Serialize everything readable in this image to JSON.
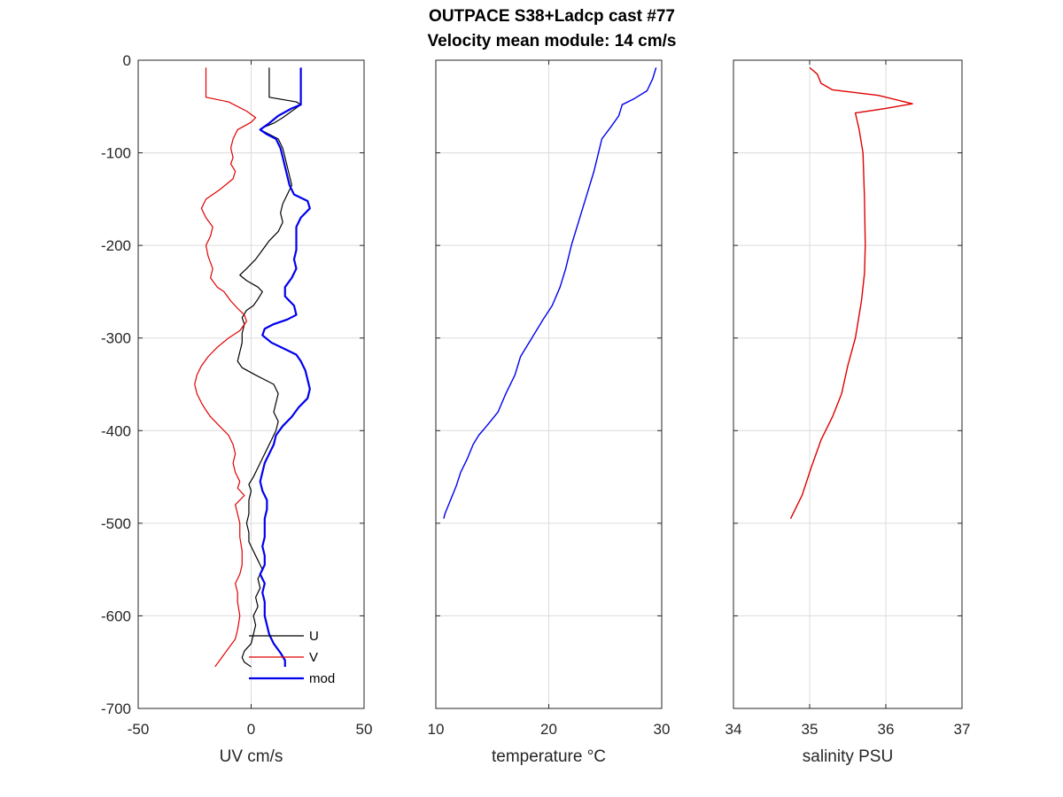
{
  "figure": {
    "title_line1": "OUTPACE S38+Ladcp cast #77",
    "title_line2": "Velocity mean module:  14 cm/s"
  },
  "chart_data": [
    {
      "type": "line",
      "xlabel": "UV cm/s",
      "xlim": [
        -50,
        50
      ],
      "xticks": [
        -50,
        0,
        50
      ],
      "ylim": [
        -700,
        0
      ],
      "yticks": [
        0,
        -100,
        -200,
        -300,
        -400,
        -500,
        -600,
        -700
      ],
      "grid": true,
      "legend_location": "bottom-center",
      "series": [
        {
          "name": "U",
          "color": "#000000",
          "points": [
            [
              8,
              -8
            ],
            [
              8,
              -40
            ],
            [
              20,
              -45
            ],
            [
              22,
              -48
            ],
            [
              18,
              -55
            ],
            [
              14,
              -62
            ],
            [
              10,
              -68
            ],
            [
              6,
              -72
            ],
            [
              4,
              -75
            ],
            [
              8,
              -80
            ],
            [
              12,
              -85
            ],
            [
              14,
              -95
            ],
            [
              15,
              -105
            ],
            [
              16,
              -115
            ],
            [
              17,
              -125
            ],
            [
              18,
              -135
            ],
            [
              16,
              -145
            ],
            [
              14,
              -155
            ],
            [
              13,
              -165
            ],
            [
              14,
              -175
            ],
            [
              12,
              -185
            ],
            [
              8,
              -195
            ],
            [
              5,
              -205
            ],
            [
              2,
              -215
            ],
            [
              -2,
              -225
            ],
            [
              -5,
              -232
            ],
            [
              -2,
              -238
            ],
            [
              3,
              -245
            ],
            [
              5,
              -250
            ],
            [
              3,
              -258
            ],
            [
              1,
              -265
            ],
            [
              -2,
              -270
            ],
            [
              -4,
              -278
            ],
            [
              -3,
              -285
            ],
            [
              -4,
              -295
            ],
            [
              -4,
              -305
            ],
            [
              -5,
              -315
            ],
            [
              -6,
              -325
            ],
            [
              -4,
              -332
            ],
            [
              2,
              -340
            ],
            [
              6,
              -345
            ],
            [
              10,
              -350
            ],
            [
              12,
              -360
            ],
            [
              11,
              -370
            ],
            [
              10,
              -380
            ],
            [
              12,
              -390
            ],
            [
              11,
              -400
            ],
            [
              9,
              -410
            ],
            [
              7,
              -420
            ],
            [
              5,
              -430
            ],
            [
              3,
              -440
            ],
            [
              1,
              -450
            ],
            [
              -1,
              -458
            ],
            [
              0,
              -465
            ],
            [
              -1,
              -475
            ],
            [
              -1,
              -490
            ],
            [
              -2,
              -500
            ],
            [
              -1,
              -510
            ],
            [
              -1,
              -520
            ],
            [
              1,
              -530
            ],
            [
              3,
              -540
            ],
            [
              5,
              -550
            ],
            [
              3,
              -560
            ],
            [
              4,
              -570
            ],
            [
              2,
              -580
            ],
            [
              3,
              -590
            ],
            [
              1,
              -600
            ],
            [
              2,
              -610
            ],
            [
              1,
              -620
            ],
            [
              0,
              -630
            ],
            [
              -3,
              -638
            ],
            [
              -4,
              -645
            ],
            [
              -3,
              -650
            ],
            [
              0,
              -655
            ]
          ]
        },
        {
          "name": "V",
          "color": "#e00000",
          "points": [
            [
              -20,
              -8
            ],
            [
              -20,
              -40
            ],
            [
              -10,
              -45
            ],
            [
              -2,
              -55
            ],
            [
              2,
              -62
            ],
            [
              0,
              -67
            ],
            [
              -6,
              -75
            ],
            [
              -8,
              -85
            ],
            [
              -9,
              -95
            ],
            [
              -8,
              -105
            ],
            [
              -9,
              -112
            ],
            [
              -7,
              -120
            ],
            [
              -8,
              -128
            ],
            [
              -14,
              -140
            ],
            [
              -20,
              -150
            ],
            [
              -22,
              -160
            ],
            [
              -20,
              -170
            ],
            [
              -17,
              -180
            ],
            [
              -18,
              -190
            ],
            [
              -20,
              -200
            ],
            [
              -19,
              -212
            ],
            [
              -17,
              -225
            ],
            [
              -18,
              -235
            ],
            [
              -15,
              -245
            ],
            [
              -12,
              -250
            ],
            [
              -9,
              -260
            ],
            [
              -6,
              -268
            ],
            [
              -3,
              -275
            ],
            [
              -2,
              -282
            ],
            [
              -5,
              -292
            ],
            [
              -10,
              -300
            ],
            [
              -15,
              -310
            ],
            [
              -19,
              -320
            ],
            [
              -22,
              -330
            ],
            [
              -24,
              -340
            ],
            [
              -25,
              -350
            ],
            [
              -24,
              -360
            ],
            [
              -22,
              -370
            ],
            [
              -20,
              -378
            ],
            [
              -18,
              -385
            ],
            [
              -14,
              -395
            ],
            [
              -10,
              -405
            ],
            [
              -8,
              -415
            ],
            [
              -7,
              -425
            ],
            [
              -8,
              -435
            ],
            [
              -7,
              -445
            ],
            [
              -5,
              -455
            ],
            [
              -6,
              -462
            ],
            [
              -3,
              -470
            ],
            [
              -7,
              -480
            ],
            [
              -6,
              -490
            ],
            [
              -5,
              -500
            ],
            [
              -5,
              -515
            ],
            [
              -4,
              -530
            ],
            [
              -4,
              -545
            ],
            [
              -5,
              -555
            ],
            [
              -7,
              -565
            ],
            [
              -6,
              -575
            ],
            [
              -6,
              -585
            ],
            [
              -5,
              -600
            ],
            [
              -6,
              -615
            ],
            [
              -7,
              -625
            ],
            [
              -10,
              -635
            ],
            [
              -13,
              -645
            ],
            [
              -16,
              -655
            ]
          ]
        },
        {
          "name": "mod",
          "color": "#0000f0",
          "points": [
            [
              22,
              -8
            ],
            [
              22,
              -48
            ],
            [
              18,
              -52
            ],
            [
              12,
              -60
            ],
            [
              8,
              -68
            ],
            [
              4,
              -75
            ],
            [
              7,
              -80
            ],
            [
              11,
              -85
            ],
            [
              13,
              -95
            ],
            [
              14,
              -105
            ],
            [
              15,
              -115
            ],
            [
              16,
              -125
            ],
            [
              17,
              -135
            ],
            [
              19,
              -145
            ],
            [
              25,
              -152
            ],
            [
              26,
              -160
            ],
            [
              22,
              -170
            ],
            [
              20,
              -180
            ],
            [
              20,
              -195
            ],
            [
              20,
              -205
            ],
            [
              19,
              -215
            ],
            [
              20,
              -225
            ],
            [
              18,
              -235
            ],
            [
              15,
              -245
            ],
            [
              15,
              -255
            ],
            [
              19,
              -265
            ],
            [
              20,
              -275
            ],
            [
              16,
              -280
            ],
            [
              10,
              -285
            ],
            [
              6,
              -290
            ],
            [
              5,
              -297
            ],
            [
              9,
              -305
            ],
            [
              15,
              -312
            ],
            [
              20,
              -318
            ],
            [
              22,
              -325
            ],
            [
              24,
              -335
            ],
            [
              25,
              -345
            ],
            [
              26,
              -355
            ],
            [
              25,
              -365
            ],
            [
              21,
              -375
            ],
            [
              18,
              -385
            ],
            [
              14,
              -395
            ],
            [
              11,
              -405
            ],
            [
              10,
              -415
            ],
            [
              8,
              -425
            ],
            [
              6,
              -435
            ],
            [
              5,
              -445
            ],
            [
              4,
              -455
            ],
            [
              5,
              -465
            ],
            [
              7,
              -475
            ],
            [
              7,
              -485
            ],
            [
              6,
              -495
            ],
            [
              6,
              -505
            ],
            [
              6,
              -515
            ],
            [
              5,
              -525
            ],
            [
              6,
              -535
            ],
            [
              6,
              -545
            ],
            [
              4,
              -555
            ],
            [
              6,
              -565
            ],
            [
              5,
              -575
            ],
            [
              6,
              -585
            ],
            [
              6,
              -600
            ],
            [
              7,
              -610
            ],
            [
              8,
              -620
            ],
            [
              10,
              -630
            ],
            [
              13,
              -640
            ],
            [
              15,
              -648
            ],
            [
              15,
              -655
            ]
          ]
        }
      ]
    },
    {
      "type": "line",
      "xlabel": "temperature °C",
      "xlim": [
        10,
        30
      ],
      "xticks": [
        10,
        20,
        30
      ],
      "ylim": [
        -700,
        0
      ],
      "grid": true,
      "series": [
        {
          "color": "#0000f0",
          "points": [
            [
              29.5,
              -8
            ],
            [
              29.2,
              -20
            ],
            [
              28.7,
              -33
            ],
            [
              27.5,
              -42
            ],
            [
              26.5,
              -48
            ],
            [
              26.2,
              -60
            ],
            [
              25.5,
              -72
            ],
            [
              24.7,
              -85
            ],
            [
              24.5,
              -95
            ],
            [
              24.3,
              -105
            ],
            [
              24.0,
              -120
            ],
            [
              23.5,
              -140
            ],
            [
              23.0,
              -160
            ],
            [
              22.5,
              -180
            ],
            [
              22.0,
              -200
            ],
            [
              21.5,
              -225
            ],
            [
              21.0,
              -245
            ],
            [
              20.3,
              -265
            ],
            [
              19.5,
              -280
            ],
            [
              18.5,
              -300
            ],
            [
              17.5,
              -320
            ],
            [
              17.0,
              -340
            ],
            [
              16.2,
              -360
            ],
            [
              15.5,
              -380
            ],
            [
              14.5,
              -395
            ],
            [
              13.8,
              -405
            ],
            [
              13.3,
              -415
            ],
            [
              12.8,
              -430
            ],
            [
              12.2,
              -445
            ],
            [
              11.8,
              -460
            ],
            [
              11.3,
              -475
            ],
            [
              10.8,
              -490
            ],
            [
              10.7,
              -495
            ]
          ]
        }
      ]
    },
    {
      "type": "line",
      "xlabel": "salinity PSU",
      "xlim": [
        34,
        37
      ],
      "xticks": [
        34,
        35,
        36,
        37
      ],
      "ylim": [
        -700,
        0
      ],
      "grid": true,
      "series": [
        {
          "color": "#e00000",
          "points": [
            [
              35.0,
              -8
            ],
            [
              35.1,
              -15
            ],
            [
              35.15,
              -25
            ],
            [
              35.3,
              -32
            ],
            [
              35.9,
              -38
            ],
            [
              36.35,
              -47
            ],
            [
              36.0,
              -52
            ],
            [
              35.6,
              -57
            ],
            [
              35.65,
              -75
            ],
            [
              35.7,
              -100
            ],
            [
              35.72,
              -150
            ],
            [
              35.73,
              -200
            ],
            [
              35.72,
              -230
            ],
            [
              35.68,
              -260
            ],
            [
              35.6,
              -300
            ],
            [
              35.5,
              -330
            ],
            [
              35.42,
              -360
            ],
            [
              35.3,
              -385
            ],
            [
              35.15,
              -410
            ],
            [
              35.02,
              -440
            ],
            [
              34.9,
              -470
            ],
            [
              34.75,
              -495
            ]
          ]
        }
      ]
    }
  ]
}
